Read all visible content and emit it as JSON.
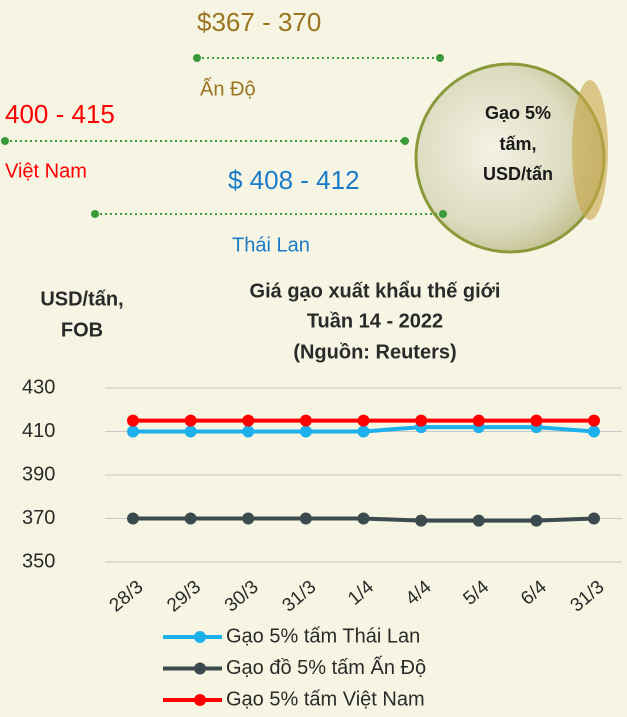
{
  "prices": [
    {
      "price": "$367 - 370",
      "country": "Ấn Độ"
    },
    {
      "price": "400 - 415",
      "country": "Việt Nam"
    },
    {
      "price": "$ 408 - 412",
      "country": "Thái Lan"
    }
  ],
  "badge": [
    "Gạo 5%",
    "tấm,",
    "USD/tấn"
  ],
  "chart_data": {
    "type": "line",
    "title": [
      "Giá gạo xuất khẩu thế giới",
      "Tuần 14 - 2022",
      "(Nguồn: Reuters)"
    ],
    "y_label": [
      "USD/tấn,",
      "FOB"
    ],
    "categories": [
      "28/3",
      "29/3",
      "30/3",
      "31/3",
      "1/4",
      "4/4",
      "5/4",
      "6/4",
      "31/3"
    ],
    "series": [
      {
        "name": "Gạo 5% tấm Thái Lan",
        "color": "#1cb0ec",
        "values": [
          410,
          410,
          410,
          410,
          410,
          412,
          412,
          412,
          410
        ]
      },
      {
        "name": "Gạo đồ 5% tấm Ấn Độ",
        "color": "#3b4a4c",
        "values": [
          370,
          370,
          370,
          370,
          370,
          369,
          369,
          369,
          370
        ]
      },
      {
        "name": "Gạo 5% tấm Việt Nam",
        "color": "#ff0000",
        "values": [
          415,
          415,
          415,
          415,
          415,
          415,
          415,
          415,
          415
        ]
      }
    ],
    "ylim": [
      350,
      430
    ],
    "yticks": [
      350,
      370,
      390,
      410,
      430
    ],
    "grid": true
  }
}
